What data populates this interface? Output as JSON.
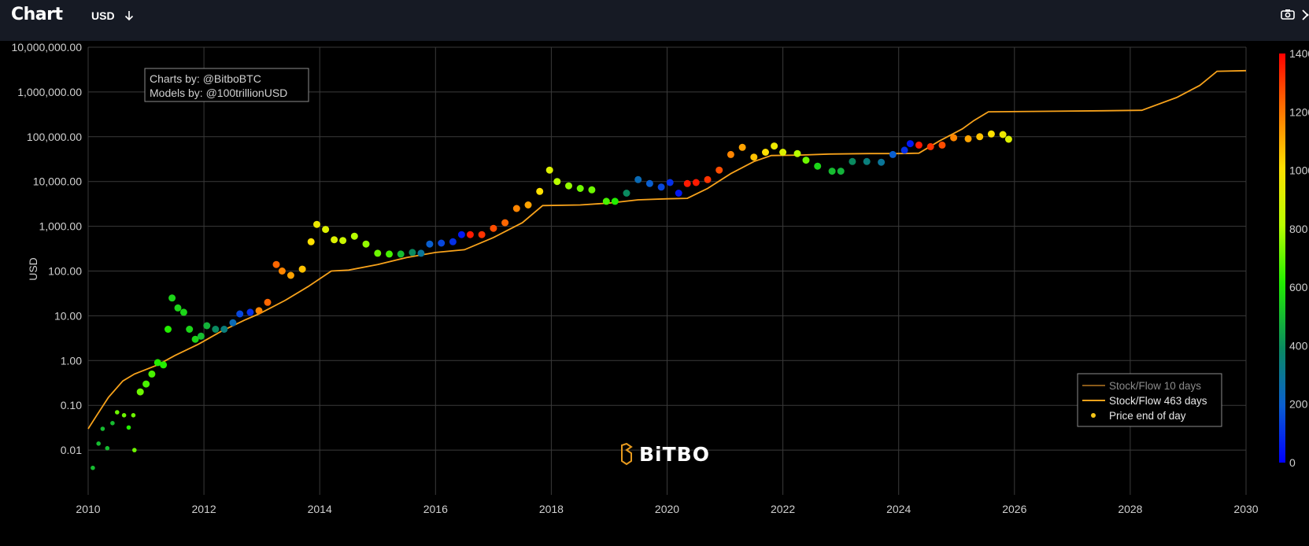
{
  "header": {
    "title": "Chart",
    "currency_label": "USD"
  },
  "icons": [
    "download-arrow-icon",
    "camera-icon",
    "expand-icon"
  ],
  "colors": {
    "background": "#000000",
    "topbar": "#161a24",
    "model_line": "#f7a21b",
    "model_line_10d": "#8a5a1a",
    "grid": "#3a3a3a"
  },
  "chart_data": {
    "type": "scatter",
    "ylabel": "USD",
    "yscale": "log",
    "xlim": [
      2010,
      2030
    ],
    "ylim": [
      0.001,
      10000000
    ],
    "x_ticks": [
      "2010",
      "2012",
      "2014",
      "2016",
      "2018",
      "2020",
      "2022",
      "2024",
      "2026",
      "2028",
      "2030"
    ],
    "y_ticks": [
      "10,000,000.00",
      "1,000,000.00",
      "100,000.00",
      "10,000.00",
      "1,000.00",
      "100.00",
      "10.00",
      "1.00",
      "0.10",
      "0.01"
    ],
    "grid": true,
    "annotation": [
      "Charts by: @BitboBTC",
      "Models by: @100trillionUSD"
    ],
    "watermark": "BiTBO",
    "legend_position": "bottom-right",
    "legend": [
      {
        "name": "Stock/Flow 10 days",
        "style": "line",
        "color": "#8a5a1a"
      },
      {
        "name": "Stock/Flow 463 days",
        "style": "line",
        "color": "#f7a21b"
      },
      {
        "name": "Price end of day",
        "style": "dot",
        "color": "#f5c518"
      }
    ],
    "colorbar": {
      "min": 0,
      "max": 1400,
      "ticks": [
        "1400",
        "1200",
        "1000",
        "800",
        "600",
        "400",
        "200",
        "0"
      ]
    },
    "series": [
      {
        "name": "Stock/Flow 463 days",
        "points": [
          [
            2010.0,
            0.03
          ],
          [
            2010.15,
            0.06
          ],
          [
            2010.35,
            0.15
          ],
          [
            2010.6,
            0.35
          ],
          [
            2010.8,
            0.5
          ],
          [
            2011.2,
            0.8
          ],
          [
            2011.5,
            1.3
          ],
          [
            2011.9,
            2.3
          ],
          [
            2012.3,
            4.5
          ],
          [
            2012.7,
            8
          ],
          [
            2012.95,
            11
          ],
          [
            2013.4,
            22
          ],
          [
            2013.8,
            45
          ],
          [
            2014.2,
            100
          ],
          [
            2014.5,
            105
          ],
          [
            2015.0,
            140
          ],
          [
            2015.5,
            200
          ],
          [
            2016.0,
            260
          ],
          [
            2016.5,
            300
          ],
          [
            2017.0,
            560
          ],
          [
            2017.5,
            1200
          ],
          [
            2017.85,
            2900
          ],
          [
            2018.5,
            3000
          ],
          [
            2019.0,
            3300
          ],
          [
            2019.5,
            3900
          ],
          [
            2020.0,
            4100
          ],
          [
            2020.35,
            4200
          ],
          [
            2020.7,
            7000
          ],
          [
            2021.1,
            15000
          ],
          [
            2021.5,
            28000
          ],
          [
            2021.8,
            38000
          ],
          [
            2022.3,
            39000
          ],
          [
            2022.8,
            41000
          ],
          [
            2023.5,
            42000
          ],
          [
            2024.0,
            42000
          ],
          [
            2024.35,
            43000
          ],
          [
            2024.7,
            80000
          ],
          [
            2025.1,
            150000
          ],
          [
            2025.3,
            230000
          ],
          [
            2025.55,
            360000
          ],
          [
            2026.5,
            370000
          ],
          [
            2027.5,
            380000
          ],
          [
            2028.2,
            390000
          ],
          [
            2028.8,
            750000
          ],
          [
            2029.2,
            1400000
          ],
          [
            2029.5,
            2900000
          ],
          [
            2030,
            3000000
          ]
        ]
      },
      {
        "name": "Price end of day",
        "points": [
          [
            2010.08,
            0.004,
            500
          ],
          [
            2010.18,
            0.014,
            500
          ],
          [
            2010.25,
            0.03,
            500
          ],
          [
            2010.33,
            0.011,
            500
          ],
          [
            2010.42,
            0.04,
            500
          ],
          [
            2010.5,
            0.07,
            700
          ],
          [
            2010.62,
            0.06,
            700
          ],
          [
            2010.7,
            0.032,
            600
          ],
          [
            2010.78,
            0.06,
            700
          ],
          [
            2010.8,
            0.01,
            700
          ],
          [
            2010.9,
            0.2,
            700
          ],
          [
            2011.0,
            0.3,
            650
          ],
          [
            2011.1,
            0.5,
            650
          ],
          [
            2011.2,
            0.9,
            600
          ],
          [
            2011.3,
            0.8,
            600
          ],
          [
            2011.38,
            5,
            600
          ],
          [
            2011.45,
            25,
            550
          ],
          [
            2011.55,
            15,
            550
          ],
          [
            2011.65,
            12,
            550
          ],
          [
            2011.75,
            5,
            550
          ],
          [
            2011.85,
            3,
            550
          ],
          [
            2011.95,
            3.5,
            500
          ],
          [
            2012.05,
            6,
            480
          ],
          [
            2012.2,
            5,
            400
          ],
          [
            2012.35,
            5,
            350
          ],
          [
            2012.5,
            7,
            250
          ],
          [
            2012.62,
            11,
            150
          ],
          [
            2012.8,
            12,
            100
          ],
          [
            2012.95,
            13,
            1150
          ],
          [
            2013.1,
            20,
            1200
          ],
          [
            2013.25,
            140,
            1200
          ],
          [
            2013.35,
            100,
            1150
          ],
          [
            2013.5,
            80,
            1100
          ],
          [
            2013.7,
            110,
            1050
          ],
          [
            2013.85,
            450,
            1000
          ],
          [
            2013.95,
            1100,
            950
          ],
          [
            2014.1,
            850,
            900
          ],
          [
            2014.25,
            500,
            900
          ],
          [
            2014.4,
            480,
            850
          ],
          [
            2014.6,
            600,
            800
          ],
          [
            2014.8,
            400,
            750
          ],
          [
            2015.0,
            250,
            700
          ],
          [
            2015.2,
            240,
            650
          ],
          [
            2015.4,
            240,
            500
          ],
          [
            2015.6,
            260,
            400
          ],
          [
            2015.75,
            250,
            300
          ],
          [
            2015.9,
            400,
            200
          ],
          [
            2016.1,
            420,
            150
          ],
          [
            2016.3,
            450,
            100
          ],
          [
            2016.45,
            650,
            50
          ],
          [
            2016.6,
            650,
            1350
          ],
          [
            2016.8,
            650,
            1300
          ],
          [
            2017.0,
            900,
            1250
          ],
          [
            2017.2,
            1200,
            1200
          ],
          [
            2017.4,
            2500,
            1150
          ],
          [
            2017.6,
            3000,
            1100
          ],
          [
            2017.8,
            6000,
            1000
          ],
          [
            2017.97,
            18000,
            900
          ],
          [
            2018.1,
            10000,
            800
          ],
          [
            2018.3,
            8000,
            750
          ],
          [
            2018.5,
            7000,
            700
          ],
          [
            2018.7,
            6500,
            700
          ],
          [
            2018.95,
            3600,
            650
          ],
          [
            2019.1,
            3600,
            600
          ],
          [
            2019.3,
            5500,
            400
          ],
          [
            2019.5,
            11000,
            250
          ],
          [
            2019.7,
            9000,
            200
          ],
          [
            2019.9,
            7500,
            150
          ],
          [
            2020.05,
            9500,
            100
          ],
          [
            2020.2,
            5500,
            50
          ],
          [
            2020.35,
            9000,
            1350
          ],
          [
            2020.5,
            9500,
            1350
          ],
          [
            2020.7,
            11000,
            1300
          ],
          [
            2020.9,
            18000,
            1250
          ],
          [
            2021.1,
            40000,
            1150
          ],
          [
            2021.3,
            58000,
            1100
          ],
          [
            2021.5,
            35000,
            1050
          ],
          [
            2021.7,
            45000,
            1000
          ],
          [
            2021.85,
            62000,
            950
          ],
          [
            2022.0,
            45000,
            900
          ],
          [
            2022.25,
            42000,
            800
          ],
          [
            2022.4,
            30000,
            700
          ],
          [
            2022.6,
            22000,
            550
          ],
          [
            2022.85,
            17000,
            500
          ],
          [
            2023.0,
            17000,
            480
          ],
          [
            2023.2,
            28000,
            400
          ],
          [
            2023.45,
            28000,
            350
          ],
          [
            2023.7,
            27000,
            300
          ],
          [
            2023.9,
            40000,
            200
          ],
          [
            2024.1,
            50000,
            100
          ],
          [
            2024.2,
            70000,
            50
          ],
          [
            2024.35,
            65000,
            1350
          ],
          [
            2024.55,
            60000,
            1300
          ],
          [
            2024.75,
            65000,
            1250
          ],
          [
            2024.95,
            95000,
            1150
          ],
          [
            2025.2,
            90000,
            1100
          ],
          [
            2025.4,
            100000,
            1050
          ],
          [
            2025.6,
            115000,
            1000
          ],
          [
            2025.8,
            112000,
            950
          ],
          [
            2025.9,
            88000,
            900
          ]
        ]
      }
    ]
  }
}
